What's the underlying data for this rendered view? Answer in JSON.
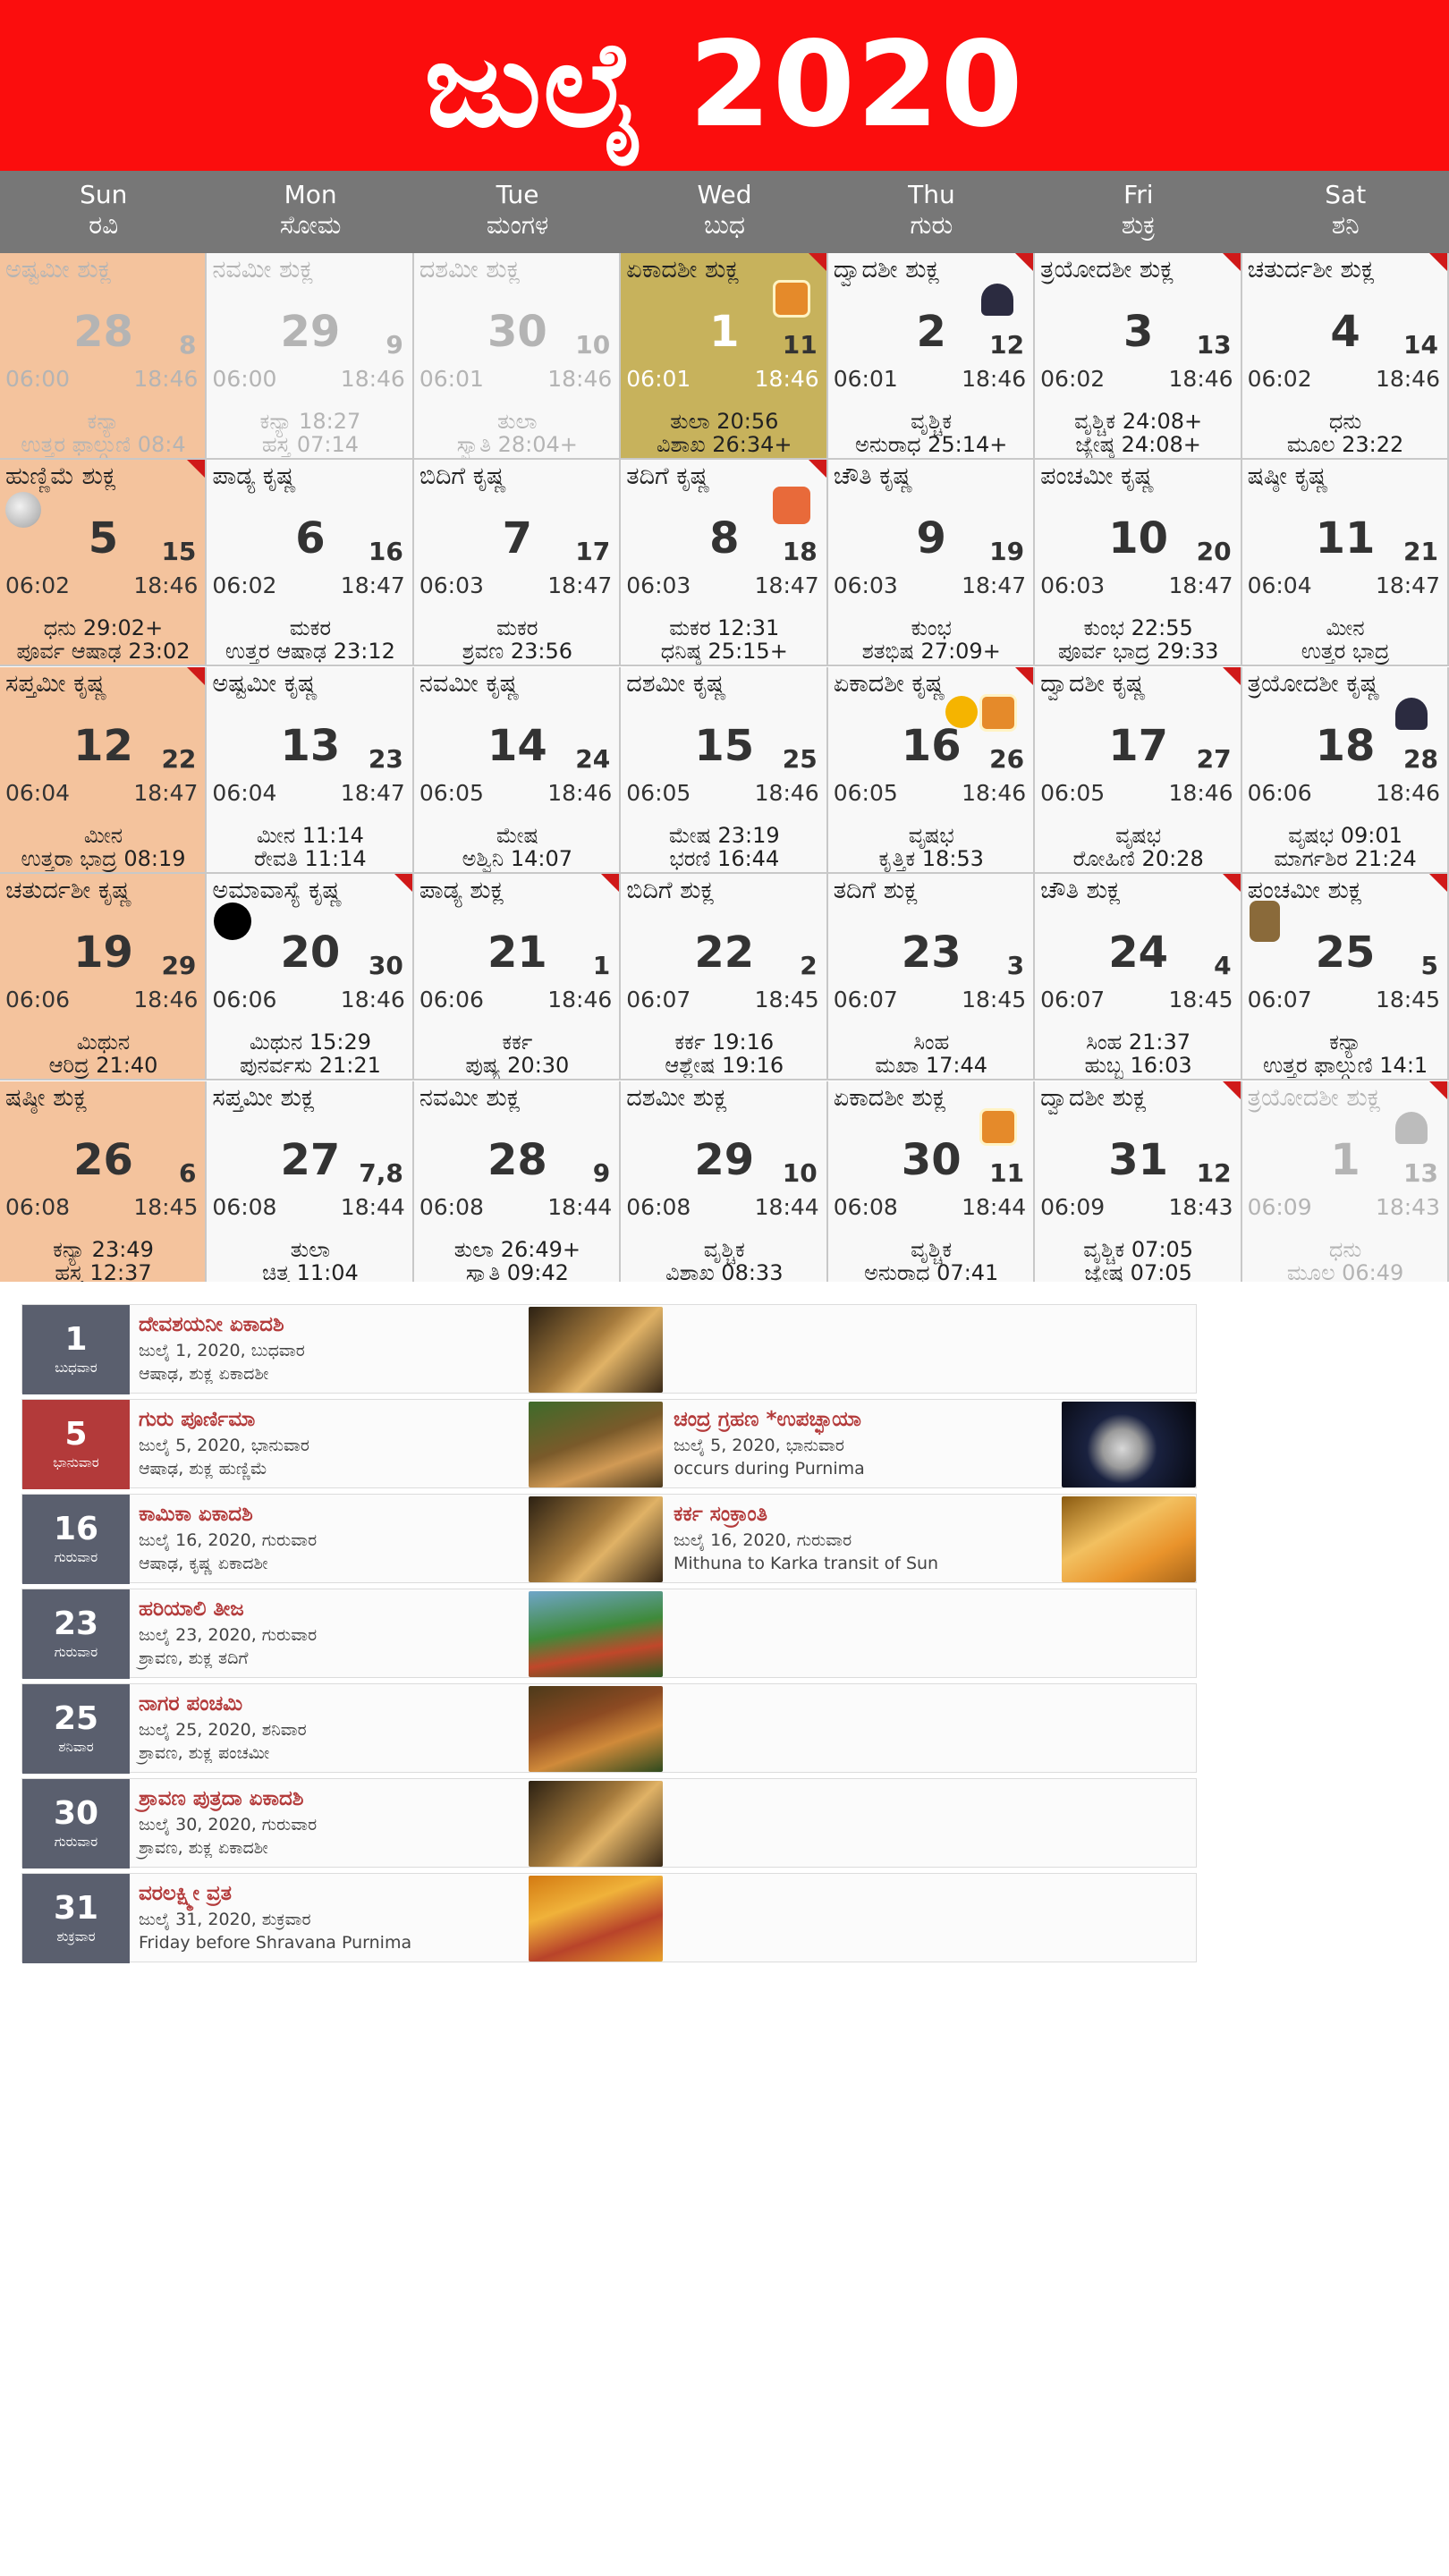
{
  "title": "ಜುಲೈ 2020",
  "weekdays": [
    {
      "en": "Sun",
      "kn": "ರವಿ"
    },
    {
      "en": "Mon",
      "kn": "ಸೋಮ"
    },
    {
      "en": "Tue",
      "kn": "ಮಂಗಳ"
    },
    {
      "en": "Wed",
      "kn": "ಬುಧ"
    },
    {
      "en": "Thu",
      "kn": "ಗುರು"
    },
    {
      "en": "Fri",
      "kn": "ಶುಕ್ರ"
    },
    {
      "en": "Sat",
      "kn": "ಶನಿ"
    }
  ],
  "days": [
    {
      "tithi": "ಅಷ್ಟಮೀ ಶುಕ್ಲ",
      "day": "28",
      "sub": "8",
      "rise": "06:00",
      "set": "18:46",
      "l1": "ಕನ್ಯಾ",
      "l2": "ಉತ್ತರ ಫಾಲ್ಗುಣಿ 08:4",
      "other": true,
      "sunday": true
    },
    {
      "tithi": "ನವಮೀ ಶುಕ್ಲ",
      "day": "29",
      "sub": "9",
      "rise": "06:00",
      "set": "18:46",
      "l1": "ಕನ್ಯಾ 18:27",
      "l2": "ಹಸ್ತ 07:14",
      "other": true
    },
    {
      "tithi": "ದಶಮೀ ಶುಕ್ಲ",
      "day": "30",
      "sub": "10",
      "rise": "06:01",
      "set": "18:46",
      "l1": "ತುಲಾ",
      "l2": "ಸ್ವಾತಿ 28:04+",
      "other": true
    },
    {
      "tithi": "ಏಕಾದಶೀ ಶುಕ್ಲ",
      "day": "1",
      "sub": "11",
      "rise": "06:01",
      "set": "18:46",
      "l1": "ತುಲಾ 20:56",
      "l2": "ವಿಶಾಖ 26:34+",
      "today": true,
      "corner": true,
      "icon": "vishnu"
    },
    {
      "tithi": "ದ್ವಾದಶೀ ಶುಕ್ಲ",
      "day": "2",
      "sub": "12",
      "rise": "06:01",
      "set": "18:46",
      "l1": "ವೃಶ್ಚಿಕ",
      "l2": "ಅನುರಾಧ 25:14+",
      "corner": true,
      "icon": "lingam"
    },
    {
      "tithi": "ತ್ರಯೋದಶೀ ಶುಕ್ಲ",
      "day": "3",
      "sub": "13",
      "rise": "06:02",
      "set": "18:46",
      "l1": "ವೃಶ್ಚಿಕ 24:08+",
      "l2": "ಜ್ಯೇಷ್ಠ 24:08+",
      "corner": true
    },
    {
      "tithi": "ಚತುರ್ದಶೀ ಶುಕ್ಲ",
      "day": "4",
      "sub": "14",
      "rise": "06:02",
      "set": "18:46",
      "l1": "ಧನು",
      "l2": "ಮೂಲ 23:22",
      "corner": true
    },
    {
      "tithi": "ಹುಣ್ಣಿಮೆ ಶುಕ್ಲ",
      "day": "5",
      "sub": "15",
      "rise": "06:02",
      "set": "18:46",
      "l1": "ಧನು 29:02+",
      "l2": "ಪೂರ್ವ ಆಷಾಢ 23:02",
      "sunday": true,
      "corner": true,
      "moon": "full"
    },
    {
      "tithi": "ಪಾಡ್ಯ ಕೃಷ್ಣ",
      "day": "6",
      "sub": "16",
      "rise": "06:02",
      "set": "18:47",
      "l1": "ಮಕರ",
      "l2": "ಉತ್ತರ ಆಷಾಢ 23:12"
    },
    {
      "tithi": "ಬಿದಿಗೆ ಕೃಷ್ಣ",
      "day": "7",
      "sub": "17",
      "rise": "06:03",
      "set": "18:47",
      "l1": "ಮಕರ",
      "l2": "ಶ್ರವಣ 23:56"
    },
    {
      "tithi": "ತದಿಗೆ ಕೃಷ್ಣ",
      "day": "8",
      "sub": "18",
      "rise": "06:03",
      "set": "18:47",
      "l1": "ಮಕರ 12:31",
      "l2": "ಧನಿಷ್ಠ 25:15+",
      "corner": true,
      "icon": "ganesha"
    },
    {
      "tithi": "ಚೌತಿ ಕೃಷ್ಣ",
      "day": "9",
      "sub": "19",
      "rise": "06:03",
      "set": "18:47",
      "l1": "ಕುಂಭ",
      "l2": "ಶತಭಿಷ 27:09+"
    },
    {
      "tithi": "ಪಂಚಮೀ ಕೃಷ್ಣ",
      "day": "10",
      "sub": "20",
      "rise": "06:03",
      "set": "18:47",
      "l1": "ಕುಂಭ 22:55",
      "l2": "ಪೂರ್ವ ಭಾದ್ರ 29:33"
    },
    {
      "tithi": "ಷಷ್ಠೀ ಕೃಷ್ಣ",
      "day": "11",
      "sub": "21",
      "rise": "06:04",
      "set": "18:47",
      "l1": "ಮೀನ",
      "l2": "ಉತ್ತರ ಭಾದ್ರ"
    },
    {
      "tithi": "ಸಪ್ತಮೀ ಕೃಷ್ಣ",
      "day": "12",
      "sub": "22",
      "rise": "06:04",
      "set": "18:47",
      "l1": "ಮೀನ",
      "l2": "ಉತ್ತರಾ ಭಾದ್ರ 08:19",
      "sunday": true,
      "corner": true
    },
    {
      "tithi": "ಅಷ್ಟಮೀ ಕೃಷ್ಣ",
      "day": "13",
      "sub": "23",
      "rise": "06:04",
      "set": "18:47",
      "l1": "ಮೀನ 11:14",
      "l2": "ರೇವತಿ 11:14"
    },
    {
      "tithi": "ನವಮೀ ಕೃಷ್ಣ",
      "day": "14",
      "sub": "24",
      "rise": "06:05",
      "set": "18:46",
      "l1": "ಮೇಷ",
      "l2": "ಅಶ್ವಿನಿ 14:07"
    },
    {
      "tithi": "ದಶಮೀ ಕೃಷ್ಣ",
      "day": "15",
      "sub": "25",
      "rise": "06:05",
      "set": "18:46",
      "l1": "ಮೇಷ 23:19",
      "l2": "ಭರಣಿ 16:44"
    },
    {
      "tithi": "ಏಕಾದಶೀ ಕೃಷ್ಣ",
      "day": "16",
      "sub": "26",
      "rise": "06:05",
      "set": "18:46",
      "l1": "ವೃಷಭ",
      "l2": "ಕೃತ್ತಿಕ 18:53",
      "corner": true,
      "icon": "vishnu",
      "icon2": "sun"
    },
    {
      "tithi": "ದ್ವಾದಶೀ ಕೃಷ್ಣ",
      "day": "17",
      "sub": "27",
      "rise": "06:05",
      "set": "18:46",
      "l1": "ವೃಷಭ",
      "l2": "ರೋಹಿಣಿ 20:28",
      "corner": true
    },
    {
      "tithi": "ತ್ರಯೋದಶೀ ಕೃಷ್ಣ",
      "day": "18",
      "sub": "28",
      "rise": "06:06",
      "set": "18:46",
      "l1": "ವೃಷಭ 09:01",
      "l2": "ಮಾರ್ಗಶಿರ 21:24",
      "icon": "lingam"
    },
    {
      "tithi": "ಚತುರ್ದಶೀ ಕೃಷ್ಣ",
      "day": "19",
      "sub": "29",
      "rise": "06:06",
      "set": "18:46",
      "l1": "ಮಿಥುನ",
      "l2": "ಆರಿದ್ರ 21:40",
      "sunday": true
    },
    {
      "tithi": "ಅಮಾವಾಸ್ಯೆ ಕೃಷ್ಣ",
      "day": "20",
      "sub": "30",
      "rise": "06:06",
      "set": "18:46",
      "l1": "ಮಿಥುನ 15:29",
      "l2": "ಪುನರ್ವಸು 21:21",
      "corner": true,
      "moon": "new"
    },
    {
      "tithi": "ಪಾಡ್ಯ ಶುಕ್ಲ",
      "day": "21",
      "sub": "1",
      "rise": "06:06",
      "set": "18:46",
      "l1": "ಕರ್ಕ",
      "l2": "ಪುಷ್ಯ 20:30",
      "corner": true
    },
    {
      "tithi": "ಬಿದಿಗೆ ಶುಕ್ಲ",
      "day": "22",
      "sub": "2",
      "rise": "06:07",
      "set": "18:45",
      "l1": "ಕರ್ಕ 19:16",
      "l2": "ಆಶ್ಲೇಷ 19:16"
    },
    {
      "tithi": "ತದಿಗೆ ಶುಕ್ಲ",
      "day": "23",
      "sub": "3",
      "rise": "06:07",
      "set": "18:45",
      "l1": "ಸಿಂಹ",
      "l2": "ಮಖಾ 17:44"
    },
    {
      "tithi": "ಚೌತಿ ಶುಕ್ಲ",
      "day": "24",
      "sub": "4",
      "rise": "06:07",
      "set": "18:45",
      "l1": "ಸಿಂಹ 21:37",
      "l2": "ಹುಬ್ಬ 16:03",
      "corner": true
    },
    {
      "tithi": "ಪಂಚಮೀ ಶುಕ್ಲ",
      "day": "25",
      "sub": "5",
      "rise": "06:07",
      "set": "18:45",
      "l1": "ಕನ್ಯಾ",
      "l2": "ಉತ್ತರ ಫಾಲ್ಗುಣಿ 14:1",
      "corner": true,
      "icon": "snake"
    },
    {
      "tithi": "ಷಷ್ಠೀ ಶುಕ್ಲ",
      "day": "26",
      "sub": "6",
      "rise": "06:08",
      "set": "18:45",
      "l1": "ಕನ್ಯಾ 23:49",
      "l2": "ಹಸ್ತ 12:37",
      "sunday": true
    },
    {
      "tithi": "ಸಪ್ತಮೀ ಶುಕ್ಲ",
      "day": "27",
      "sub": "7,8",
      "rise": "06:08",
      "set": "18:44",
      "l1": "ತುಲಾ",
      "l2": "ಚಿತ್ತ 11:04"
    },
    {
      "tithi": "ನವಮೀ ಶುಕ್ಲ",
      "day": "28",
      "sub": "9",
      "rise": "06:08",
      "set": "18:44",
      "l1": "ತುಲಾ 26:49+",
      "l2": "ಸ್ವಾತಿ 09:42"
    },
    {
      "tithi": "ದಶಮೀ ಶುಕ್ಲ",
      "day": "29",
      "sub": "10",
      "rise": "06:08",
      "set": "18:44",
      "l1": "ವೃಶ್ಚಿಕ",
      "l2": "ವಿಶಾಖ 08:33"
    },
    {
      "tithi": "ಏಕಾದಶೀ ಶುಕ್ಲ",
      "day": "30",
      "sub": "11",
      "rise": "06:08",
      "set": "18:44",
      "l1": "ವೃಶ್ಚಿಕ",
      "l2": "ಅನುರಾಧ 07:41",
      "icon": "vishnu"
    },
    {
      "tithi": "ದ್ವಾದಶೀ ಶುಕ್ಲ",
      "day": "31",
      "sub": "12",
      "rise": "06:09",
      "set": "18:43",
      "l1": "ವೃಶ್ಚಿಕ 07:05",
      "l2": "ಜ್ಯೇಷ್ಠ 07:05",
      "corner": true
    },
    {
      "tithi": "ತ್ರಯೋದಶೀ ಶುಕ್ಲ",
      "day": "1",
      "sub": "13",
      "rise": "06:09",
      "set": "18:43",
      "l1": "ಧನು",
      "l2": "ಮೂಲ 06:49",
      "other": true,
      "corner": true,
      "icon": "lingam"
    }
  ],
  "events": [
    {
      "num": "1",
      "weekday": "ಬುಧವಾರ",
      "red": false,
      "thumb": "vishnu",
      "name": "ದೇವಶಯನೀ ಏಕಾದಶಿ",
      "date": "ಜುಲೈ 1, 2020, ಬುಧವಾರ",
      "desc": "ಆಷಾಢ, ಶುಕ್ಲ ಏಕಾದಶೀ"
    },
    {
      "num": "5",
      "weekday": "ಭಾನುವಾರ",
      "red": true,
      "thumb": "guru",
      "name": "ಗುರು ಪೂರ್ಣಿಮಾ",
      "date": "ಜುಲೈ 5, 2020, ಭಾನುವಾರ",
      "desc": "ಆಷಾಢ, ಶುಕ್ಲ ಹುಣ್ಣಿಮೆ",
      "second": {
        "name": "ಚಂದ್ರ ಗ್ರಹಣ *ಉಪಚ್ಛಾಯಾ",
        "date": "ಜುಲೈ 5, 2020, ಭಾನುವಾರ",
        "desc": "occurs during Purnima",
        "thumb": "eclipse"
      }
    },
    {
      "num": "16",
      "weekday": "ಗುರುವಾರ",
      "red": false,
      "thumb": "vishnu",
      "name": "ಕಾಮಿಕಾ ಏಕಾದಶಿ",
      "date": "ಜುಲೈ 16, 2020, ಗುರುವಾರ",
      "desc": "ಆಷಾಢ, ಕೃಷ್ಣ ಏಕಾದಶೀ",
      "second": {
        "name": "ಕರ್ಕ ಸಂಕ್ರಾಂತಿ",
        "date": "ಜುಲೈ 16, 2020, ಗುರುವಾರ",
        "desc": "Mithuna to Karka transit of Sun",
        "thumb": "sun"
      }
    },
    {
      "num": "23",
      "weekday": "ಗುರುವಾರ",
      "red": false,
      "thumb": "teej",
      "name": "ಹರಿಯಾಲಿ ತೀಜ",
      "date": "ಜುಲೈ 23, 2020, ಗುರುವಾರ",
      "desc": "ಶ್ರಾವಣ, ಶುಕ್ಲ ತದಿಗೆ"
    },
    {
      "num": "25",
      "weekday": "ಶನಿವಾರ",
      "red": false,
      "thumb": "naga",
      "name": "ನಾಗರ ಪಂಚಮಿ",
      "date": "ಜುಲೈ 25, 2020, ಶನಿವಾರ",
      "desc": "ಶ್ರಾವಣ, ಶುಕ್ಲ ಪಂಚಮೀ"
    },
    {
      "num": "30",
      "weekday": "ಗುರುವಾರ",
      "red": false,
      "thumb": "vishnu",
      "name": "ಶ್ರಾವಣ ಪುತ್ರದಾ ಏಕಾದಶಿ",
      "date": "ಜುಲೈ 30, 2020, ಗುರುವಾರ",
      "desc": "ಶ್ರಾವಣ, ಶುಕ್ಲ ಏಕಾದಶೀ"
    },
    {
      "num": "31",
      "weekday": "ಶುಕ್ರವಾರ",
      "red": false,
      "thumb": "lakshmi",
      "name": "ವರಲಕ್ಷ್ಮೀ ವ್ರತ",
      "date": "ಜುಲೈ 31, 2020, ಶುಕ್ರವಾರ",
      "desc": "Friday before Shravana Purnima"
    }
  ]
}
